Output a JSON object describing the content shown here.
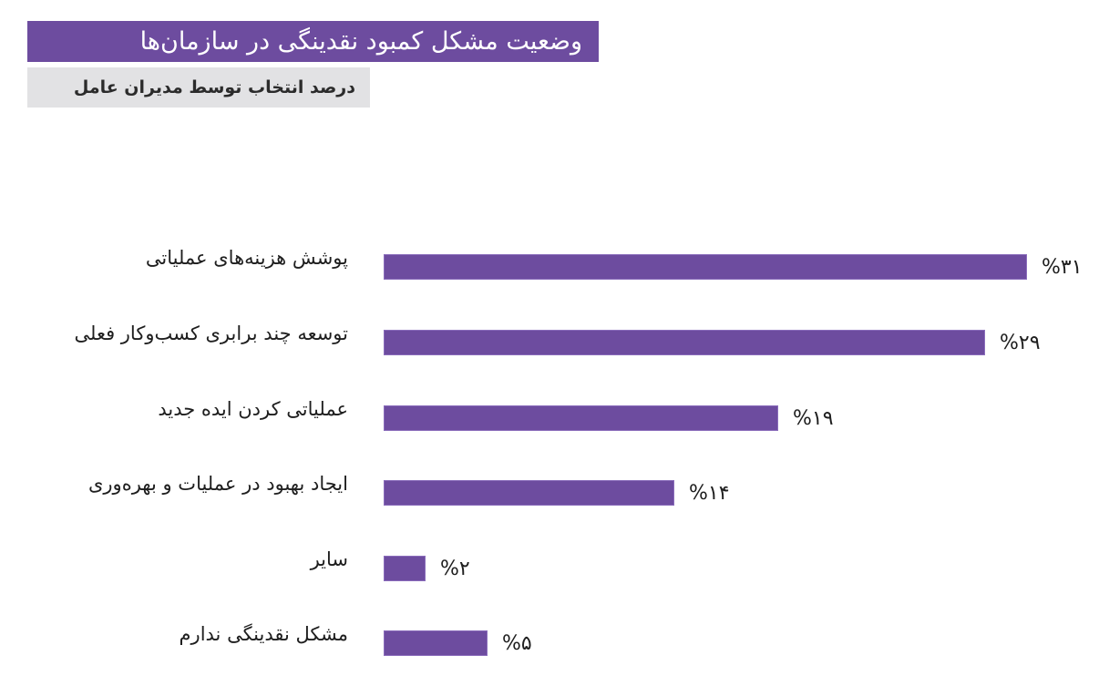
{
  "header": {
    "title": "وضعیت مشکل کمبود نقدینگی در سازمان‌ها",
    "subtitle": "درصد انتخاب توسط مدیران عامل"
  },
  "colors": {
    "bar": "#6d4c9f",
    "title_bg": "#6d4c9f",
    "subtitle_bg": "#e2e2e4",
    "text": "#1e1e1e"
  },
  "chart_data": {
    "type": "bar",
    "orientation": "horizontal",
    "title": "وضعیت مشکل کمبود نقدینگی در سازمان‌ها",
    "subtitle": "درصد انتخاب توسط مدیران عامل",
    "xlabel": "",
    "ylabel": "",
    "unit": "%",
    "grid": false,
    "legend": null,
    "categories": [
      "پوشش هزینه‌های عملیاتی",
      "توسعه چند برابری کسب‌وکار فعلی",
      "عملیاتی کردن ایده جدید",
      "ایجاد بهبود در عملیات و بهره‌وری",
      "سایر",
      "مشکل نقدینگی ندارم"
    ],
    "values": [
      31,
      29,
      19,
      14,
      2,
      5
    ],
    "value_labels": [
      "%۳۱",
      "%۲۹",
      "%۱۹",
      "%۱۴",
      "%۲",
      "%۵"
    ]
  },
  "rows": [
    {
      "label": "پوشش هزینه‌های عملیاتی",
      "value": 31,
      "value_label": "%۳۱"
    },
    {
      "label": "توسعه چند برابری کسب‌وکار فعلی",
      "value": 29,
      "value_label": "%۲۹"
    },
    {
      "label": "عملیاتی کردن ایده جدید",
      "value": 19,
      "value_label": "%۱۹"
    },
    {
      "label": "ایجاد بهبود در عملیات و بهره‌وری",
      "value": 14,
      "value_label": "%۱۴"
    },
    {
      "label": "سایر",
      "value": 2,
      "value_label": "%۲"
    },
    {
      "label": "مشکل نقدینگی ندارم",
      "value": 5,
      "value_label": "%۵"
    }
  ]
}
